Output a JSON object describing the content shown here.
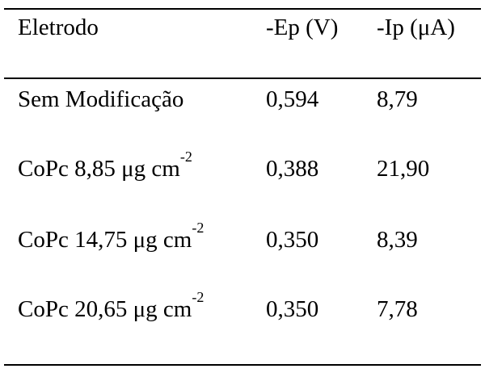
{
  "table": {
    "headers": {
      "electrode": "Eletrodo",
      "ep": "-Ep (V)",
      "ip": "-Ip (μA)"
    },
    "rows": [
      {
        "electrode": "Sem Modificação",
        "electrode_sup": "",
        "ep": "0,594",
        "ip": "8,79"
      },
      {
        "electrode": "CoPc 8,85 μg cm",
        "electrode_sup": "-2",
        "ep": "0,388",
        "ip": "21,90"
      },
      {
        "electrode": "CoPc 14,75 μg cm",
        "electrode_sup": "-2",
        "ep": "0,350",
        "ip": "8,39"
      },
      {
        "electrode": "CoPc 20,65 μg cm",
        "electrode_sup": "-2",
        "ep": "0,350",
        "ip": "7,78"
      }
    ]
  }
}
